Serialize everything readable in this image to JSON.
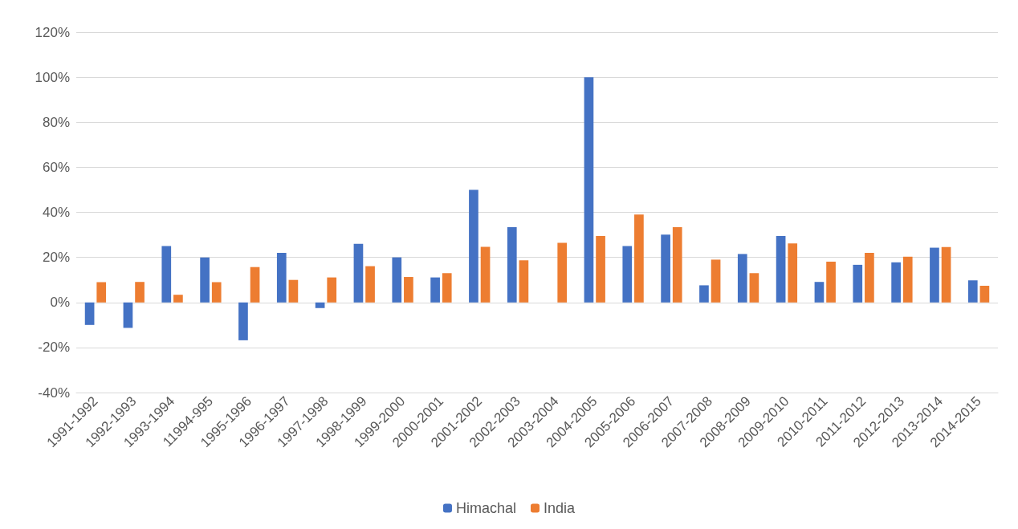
{
  "chart_data": {
    "type": "bar",
    "categories": [
      "1991-1992",
      "1992-1993",
      "1993-1994",
      "11994-995",
      "1995-1996",
      "1996-1997",
      "1997-1998",
      "1998-1999",
      "1999-2000",
      "2000-2001",
      "2001-2002",
      "2002-2003",
      "2003-2004",
      "2004-2005",
      "2005-2006",
      "2006-2007",
      "2007-2008",
      "2008-2009",
      "2009-2010",
      "2010-2011",
      "2011-2012",
      "2012-2013",
      "2013-2014",
      "2014-2015"
    ],
    "series": [
      {
        "name": "Himachal",
        "color": "#4472c4",
        "values": [
          -10,
          -11.3,
          25,
          20,
          -16.8,
          22,
          -2.5,
          26,
          20,
          11.1,
          50,
          33.4,
          null,
          100,
          25,
          30.1,
          7.6,
          21.5,
          29.5,
          9.1,
          16.7,
          17.8,
          24.3,
          9.8
        ]
      },
      {
        "name": "India",
        "color": "#ed7d31",
        "values": [
          9,
          9.1,
          3.4,
          9,
          15.7,
          10,
          11.1,
          16.1,
          11.3,
          13,
          24.7,
          18.7,
          26.5,
          29.5,
          39,
          33.4,
          19,
          13,
          26.2,
          18.1,
          22,
          20.3,
          24.6,
          7.4
        ]
      }
    ],
    "ylim": [
      -40,
      120
    ],
    "yticks": [
      {
        "value": -40,
        "label": "-40%"
      },
      {
        "value": -20,
        "label": "-20%"
      },
      {
        "value": 0,
        "label": "0%"
      },
      {
        "value": 20,
        "label": "20%"
      },
      {
        "value": 40,
        "label": "40%"
      },
      {
        "value": 60,
        "label": "60%"
      },
      {
        "value": 80,
        "label": "80%"
      },
      {
        "value": 100,
        "label": "100%"
      },
      {
        "value": 120,
        "label": "120%"
      }
    ],
    "grid": "y",
    "legend": "bottom"
  }
}
